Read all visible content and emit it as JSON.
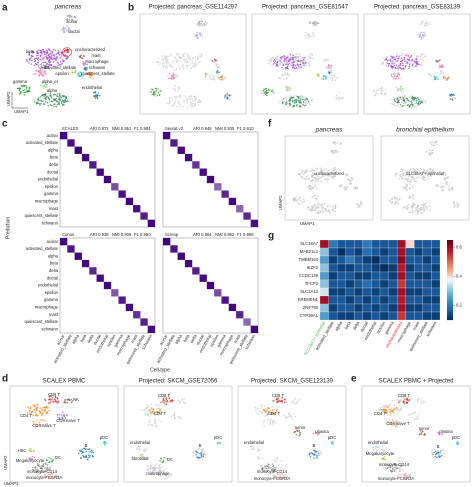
{
  "panels": {
    "a": {
      "letter": "a",
      "title": "pancreas",
      "x_label": "UMAP1",
      "y_label": "UMAP2",
      "labels": [
        "acinar",
        "ductal",
        "beta",
        "uncharacterized",
        "mast",
        "macrophage",
        "schwann",
        "quiescent_stellate",
        "activated_stellate",
        "epsilon",
        "delta",
        "alpha_er",
        "gamma",
        "endothelial",
        "alpha"
      ]
    },
    "b": {
      "letter": "b",
      "titles": [
        "Projected: pancreas_GSE114297",
        "Projected: pancreas_GSE81547",
        "Projected: pancreas_GSE83139"
      ]
    },
    "c": {
      "letter": "c",
      "y_label": "Prediction",
      "x_label": "Cell-type",
      "cell_types": [
        "acinar",
        "activated_stellate",
        "alpha",
        "beta",
        "delta",
        "ductal",
        "endothelial",
        "epsilon",
        "gamma",
        "macrophage",
        "mast",
        "quiescent_stellate",
        "schwann"
      ],
      "matrices": [
        {
          "method": "SCALEX",
          "metrics": [
            "ARI 0.972",
            "NMI 0.951",
            "F1 0.984"
          ],
          "diagonal": [
            0.99,
            0.95,
            0.99,
            0.98,
            0.9,
            0.97,
            0.99,
            0.7,
            0.95,
            0.99,
            0.95,
            0.9,
            0.98
          ]
        },
        {
          "method": "Seurat v3",
          "metrics": [
            "ARI 0.948",
            "NMI 0.935",
            "F1 0.910"
          ],
          "diagonal": [
            0.97,
            0.9,
            0.98,
            0.97,
            0.8,
            0.95,
            0.98,
            0.6,
            0.85,
            0.97,
            0.6,
            0.85,
            0.95
          ]
        },
        {
          "method": "Conos",
          "metrics": [
            "ARI 0.936",
            "NMI 0.906",
            "F1 0.950"
          ],
          "diagonal": [
            0.98,
            0.92,
            0.98,
            0.96,
            0.85,
            0.96,
            0.98,
            0.65,
            0.9,
            0.98,
            0.8,
            0.88,
            0.96
          ]
        },
        {
          "method": "Scmap",
          "metrics": [
            "ARI 0.964",
            "NMI 0.962",
            "F1 0.966"
          ],
          "diagonal": [
            0.99,
            0.93,
            0.99,
            0.97,
            0.88,
            0.96,
            0.99,
            0.7,
            0.92,
            0.98,
            0.85,
            0.6,
            0.97
          ]
        }
      ]
    },
    "f": {
      "letter": "f",
      "titles": [
        "pancreas",
        "bronchial epithelium"
      ],
      "labels": [
        "uncharacterized",
        "SLC16A7+ epithelial"
      ],
      "x_label": "UMAP1",
      "y_label": "UMAP2"
    },
    "g": {
      "letter": "g",
      "genes": [
        "SLC16A7",
        "MAB21L2",
        "TMEM163",
        "IKZF2",
        "CCDC149",
        "TFCP2",
        "SLC2A13",
        "KREMEN1",
        "ZNF793",
        "CYP39A1"
      ],
      "cell_types": [
        "SLC16A7+ epithelial",
        "activated_stellate",
        "alpha",
        "beta",
        "delta",
        "ductal",
        "endothelial",
        "epsilon",
        "gamma",
        "uncharacterized",
        "macrophage",
        "mast",
        "quiescent_stellate",
        "schwann"
      ],
      "values": [
        [
          0.6,
          0.2,
          0.15,
          0.15,
          0.15,
          0.2,
          0.15,
          0.15,
          0.15,
          0.6,
          0.4,
          0.15,
          0.15,
          0.15
        ],
        [
          0.3,
          0.15,
          0.1,
          0.15,
          0.12,
          0.18,
          0.15,
          0.12,
          0.15,
          0.6,
          0.15,
          0.12,
          0.15,
          0.12
        ],
        [
          0.25,
          0.12,
          0.15,
          0.2,
          0.15,
          0.12,
          0.1,
          0.15,
          0.15,
          0.62,
          0.15,
          0.15,
          0.12,
          0.15
        ],
        [
          0.3,
          0.15,
          0.12,
          0.12,
          0.15,
          0.15,
          0.12,
          0.1,
          0.12,
          0.58,
          0.12,
          0.15,
          0.15,
          0.12
        ],
        [
          0.25,
          0.12,
          0.15,
          0.15,
          0.12,
          0.12,
          0.15,
          0.15,
          0.12,
          0.6,
          0.15,
          0.12,
          0.12,
          0.15
        ],
        [
          0.3,
          0.15,
          0.15,
          0.12,
          0.15,
          0.18,
          0.15,
          0.12,
          0.15,
          0.55,
          0.15,
          0.15,
          0.15,
          0.12
        ],
        [
          0.35,
          0.12,
          0.12,
          0.15,
          0.12,
          0.15,
          0.12,
          0.15,
          0.12,
          0.6,
          0.12,
          0.12,
          0.15,
          0.15
        ],
        [
          0.6,
          0.15,
          0.15,
          0.12,
          0.15,
          0.12,
          0.15,
          0.12,
          0.15,
          0.58,
          0.15,
          0.15,
          0.12,
          0.12
        ],
        [
          0.3,
          0.12,
          0.15,
          0.15,
          0.12,
          0.15,
          0.12,
          0.15,
          0.12,
          0.6,
          0.12,
          0.12,
          0.15,
          0.15
        ],
        [
          0.25,
          0.15,
          0.12,
          0.12,
          0.15,
          0.12,
          0.15,
          0.12,
          0.15,
          0.55,
          0.15,
          0.15,
          0.12,
          0.12
        ]
      ],
      "colorbar_lim": [
        0.1,
        0.65
      ],
      "colorbar_ticks": [
        0.2,
        0.4,
        0.6
      ]
    },
    "d": {
      "letter": "d",
      "x_label": "UMAP1",
      "y_label": "UMAP2",
      "titles": [
        "SCALEX PBMC",
        "Projected: SKCM_GSE72056",
        "Projected: SKCM_GSE123139"
      ],
      "labels": [
        [
          "CD4 T",
          "CD8 T",
          "CD4 naive T",
          "CD8 naive T",
          "NK",
          "pDC",
          "B",
          "HSC",
          "Megakaryocyte",
          "DC",
          "monocyte-CD14",
          "monocyte-FCGR3A"
        ],
        [
          "CD8 T",
          "CD4 T",
          "pDC",
          "endothelial",
          "fibroblast",
          "B",
          "DC",
          "macrophage"
        ],
        [
          "CD8 T",
          "CD4 T",
          "pDC",
          "tumor",
          "plasma",
          "endothelial",
          "B",
          "monocyte-CD14",
          "monocyte-FCGR3A"
        ]
      ]
    },
    "e": {
      "letter": "e",
      "title": "SCALEX PBMC + Projected",
      "labels": [
        "CD8 T",
        "CD4 T",
        "CD4 naive T",
        "pDC",
        "endothelial",
        "tumor",
        "plasma",
        "B",
        "Megakaryocyte",
        "monocyte-CD14",
        "monocyte-FCGR3A"
      ]
    }
  }
}
